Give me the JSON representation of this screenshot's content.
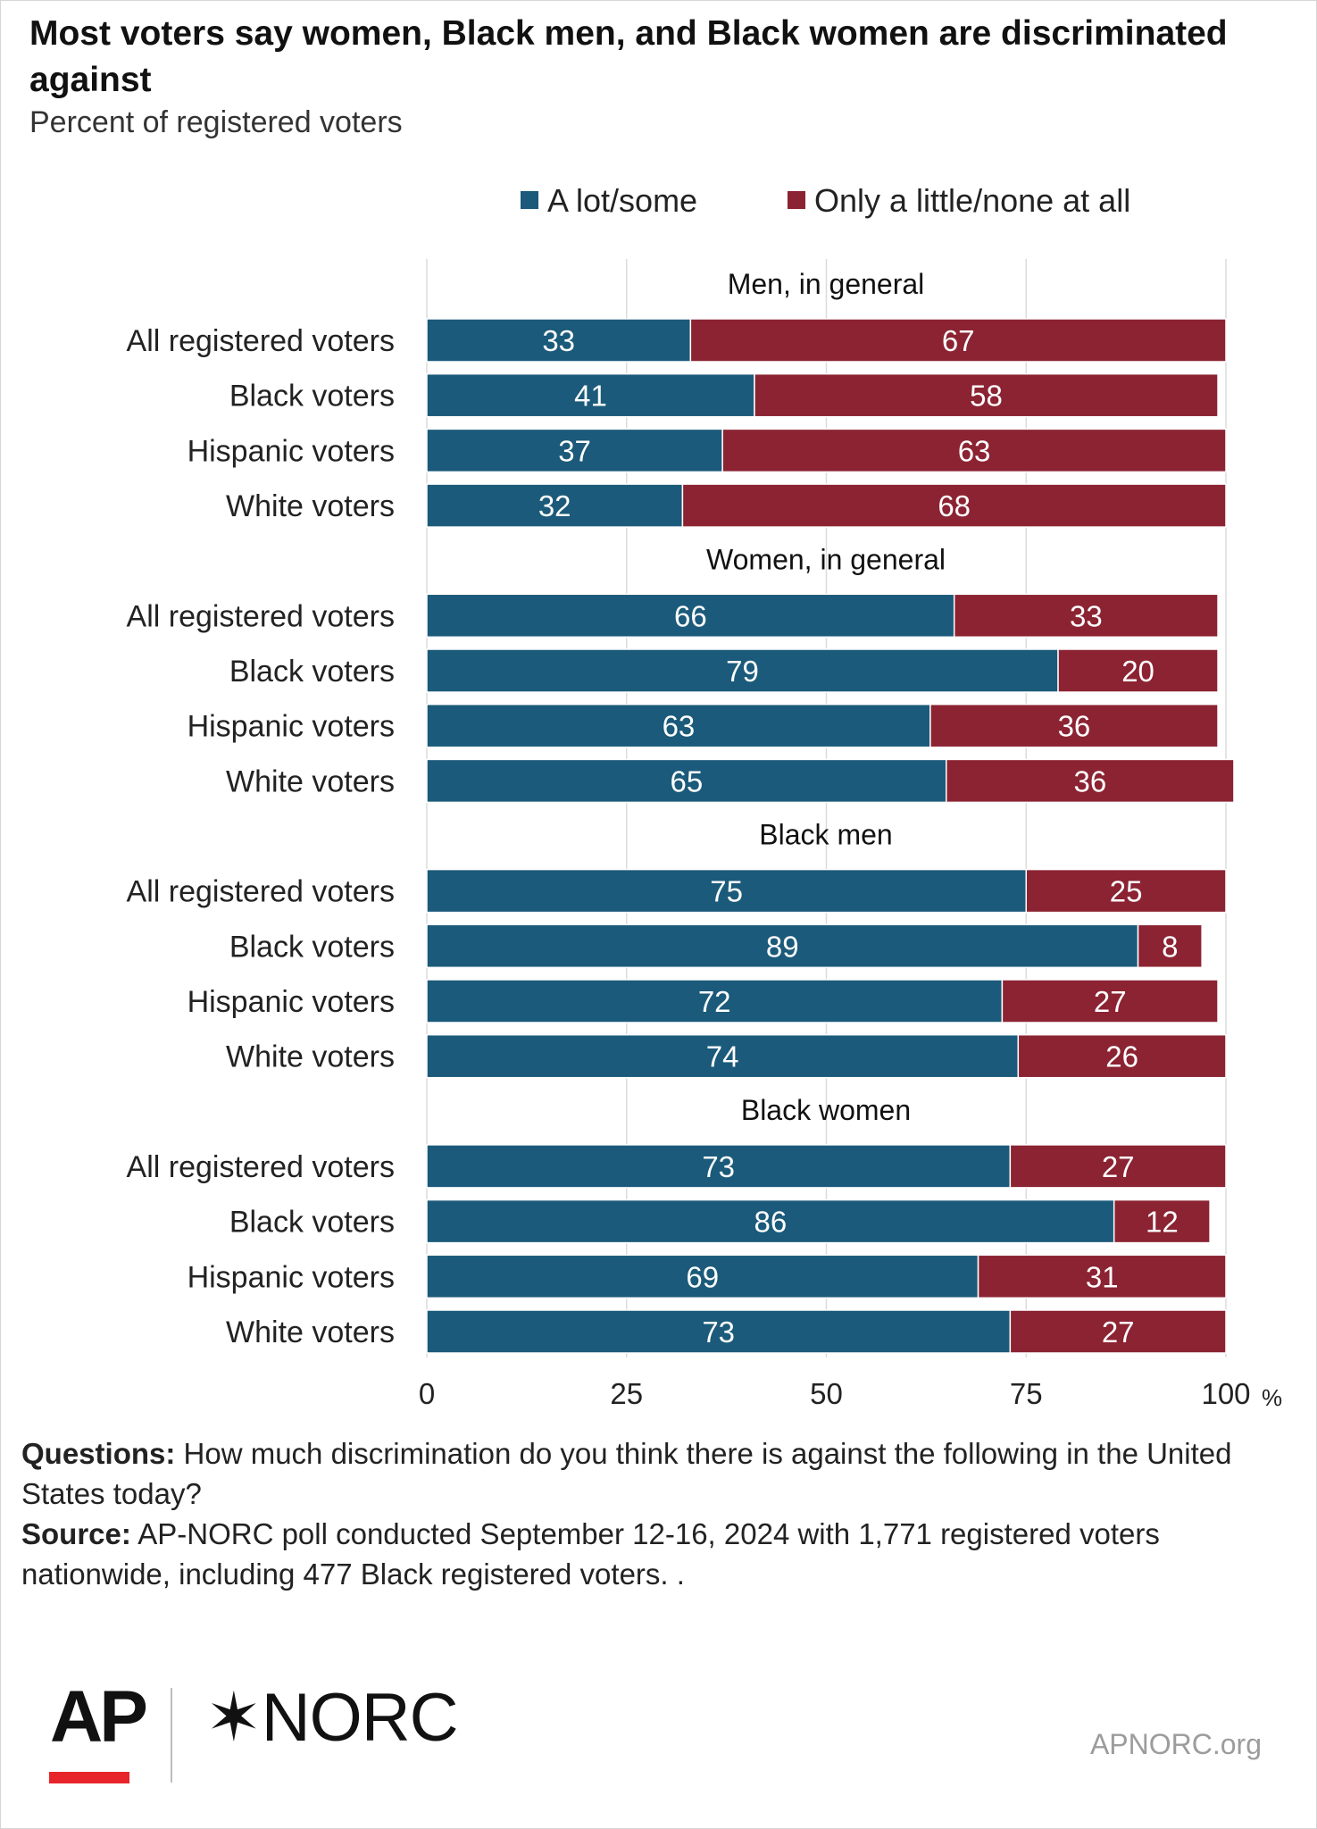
{
  "title": "Most voters say women, Black men, and Black women are discriminated against",
  "subtitle": "Percent of registered voters",
  "legend": {
    "a_lot": "A lot/some",
    "little": "Only a little/none at all"
  },
  "colors": {
    "a_lot": "#1b5a7a",
    "little": "#8b2332",
    "grid": "#dcdcdc"
  },
  "notes": {
    "questions_label": "Questions:",
    "questions_text": " How much discrimination do you think there is against the following in the United States today?",
    "source_label": "Source:",
    "source_text": " AP-NORC poll conducted September 12-16, 2024 with 1,771 registered voters nationwide, including 477 Black registered voters. ."
  },
  "logos": {
    "ap": "AP",
    "norc": "NORC"
  },
  "site": "APNORC.org",
  "chart_data": {
    "type": "bar",
    "orientation": "horizontal",
    "stacked": true,
    "xlim": [
      0,
      100
    ],
    "xticks": [
      "0",
      "25",
      "50",
      "75",
      "100"
    ],
    "x_unit": "%",
    "grid": true,
    "legend_position": "top",
    "series_names": [
      "A lot/some",
      "Only a little/none at all"
    ],
    "groups": [
      {
        "title": "Men, in general",
        "rows": [
          {
            "label": "All registered voters",
            "a_lot": 33,
            "little": 67
          },
          {
            "label": "Black voters",
            "a_lot": 41,
            "little": 58
          },
          {
            "label": "Hispanic voters",
            "a_lot": 37,
            "little": 63
          },
          {
            "label": "White voters",
            "a_lot": 32,
            "little": 68
          }
        ]
      },
      {
        "title": "Women, in general",
        "rows": [
          {
            "label": "All registered voters",
            "a_lot": 66,
            "little": 33
          },
          {
            "label": "Black voters",
            "a_lot": 79,
            "little": 20
          },
          {
            "label": "Hispanic voters",
            "a_lot": 63,
            "little": 36
          },
          {
            "label": "White voters",
            "a_lot": 65,
            "little": 36
          }
        ]
      },
      {
        "title": "Black men",
        "rows": [
          {
            "label": "All registered voters",
            "a_lot": 75,
            "little": 25
          },
          {
            "label": "Black voters",
            "a_lot": 89,
            "little": 8
          },
          {
            "label": "Hispanic voters",
            "a_lot": 72,
            "little": 27
          },
          {
            "label": "White voters",
            "a_lot": 74,
            "little": 26
          }
        ]
      },
      {
        "title": "Black women",
        "rows": [
          {
            "label": "All registered voters",
            "a_lot": 73,
            "little": 27
          },
          {
            "label": "Black voters",
            "a_lot": 86,
            "little": 12
          },
          {
            "label": "Hispanic voters",
            "a_lot": 69,
            "little": 31
          },
          {
            "label": "White voters",
            "a_lot": 73,
            "little": 27
          }
        ]
      }
    ]
  }
}
